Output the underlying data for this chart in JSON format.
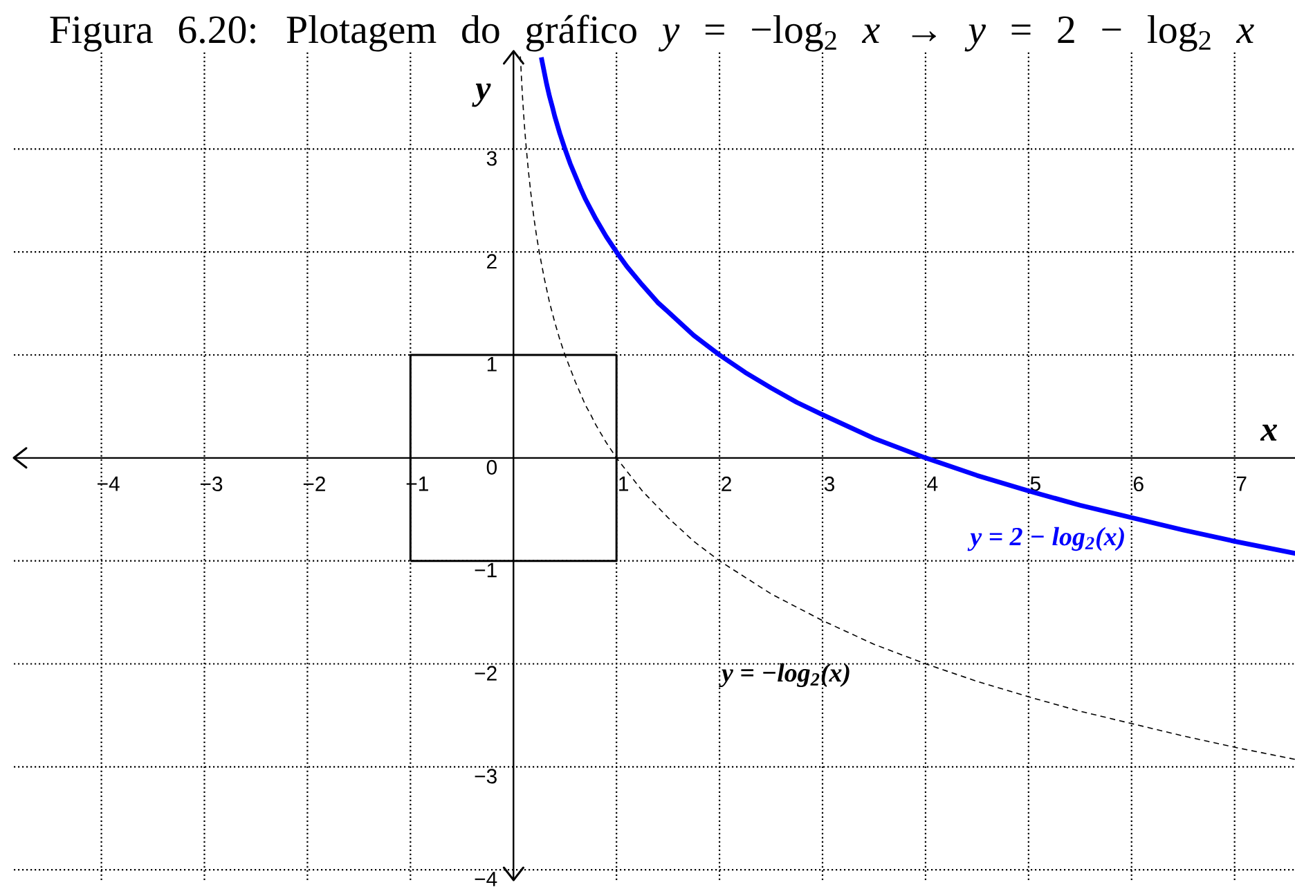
{
  "chart_data": {
    "type": "line",
    "title": "Figura 6.20: Plotagem do gráfico *y* = −log$_{2}$ *x* → *y* = 2 − log$_{2}$ *x*",
    "xlabel": "x",
    "ylabel": "y",
    "xlim": [
      -4.85,
      7.6
    ],
    "ylim": [
      -4.1,
      3.95
    ],
    "xticks": [
      {
        "value": -4,
        "label": "−4"
      },
      {
        "value": -3,
        "label": "−3"
      },
      {
        "value": -2,
        "label": "−2"
      },
      {
        "value": -1,
        "label": "−1"
      },
      1,
      2,
      3,
      4,
      5,
      6,
      7
    ],
    "yticks": [
      {
        "value": -4,
        "label": "−4"
      },
      {
        "value": -3,
        "label": "−3"
      },
      {
        "value": -2,
        "label": "−2"
      },
      {
        "value": -1,
        "label": "−1"
      },
      0,
      1,
      2,
      3
    ],
    "grid": true,
    "series": [
      {
        "name": "y = 2 − log$_{2}$(x)",
        "color": "#0000ff",
        "x": [
          0.27,
          0.28,
          0.3,
          0.32,
          0.35,
          0.38,
          0.4,
          0.45,
          0.5,
          0.55,
          0.6,
          0.65,
          0.7,
          0.8,
          0.9,
          1,
          1.1,
          1.25,
          1.4,
          1.5,
          1.75,
          2,
          2.25,
          2.5,
          2.75,
          3,
          3.5,
          4,
          4.5,
          5,
          5.5,
          6,
          6.5,
          7,
          7.6
        ],
        "values": [
          3.89,
          3.84,
          3.74,
          3.64,
          3.51,
          3.4,
          3.32,
          3.15,
          3,
          2.86,
          2.74,
          2.62,
          2.51,
          2.32,
          2.15,
          2,
          1.86,
          1.68,
          1.51,
          1.42,
          1.19,
          1,
          0.83,
          0.68,
          0.54,
          0.42,
          0.19,
          0,
          -0.17,
          -0.32,
          -0.46,
          -0.58,
          -0.7,
          -0.81,
          -0.93
        ]
      },
      {
        "name": "y = −log$_{2}$(x)",
        "color": "#000000",
        "line_style": "dashed",
        "x": [
          0.067,
          0.075,
          0.08,
          0.09,
          0.1,
          0.11,
          0.125,
          0.14,
          0.15,
          0.17,
          0.2,
          0.225,
          0.25,
          0.3,
          0.35,
          0.4,
          0.45,
          0.5,
          0.6,
          0.7,
          0.75,
          0.8,
          0.9,
          1,
          1.25,
          1.5,
          1.75,
          2,
          2.5,
          3,
          3.5,
          4,
          4.5,
          5,
          5.5,
          6,
          6.5,
          7,
          7.6
        ],
        "values": [
          3.9,
          3.74,
          3.64,
          3.47,
          3.32,
          3.18,
          3,
          2.84,
          2.74,
          2.56,
          2.32,
          2.15,
          2,
          1.74,
          1.51,
          1.32,
          1.15,
          1,
          0.74,
          0.51,
          0.42,
          0.32,
          0.15,
          0,
          -0.32,
          -0.58,
          -0.81,
          -1,
          -1.32,
          -1.58,
          -1.81,
          -2,
          -2.17,
          -2.32,
          -2.46,
          -2.58,
          -2.7,
          -2.81,
          -2.93
        ]
      },
      {
        "color": "#000000",
        "x": [
          -1,
          1,
          1
        ],
        "values": [
          -1,
          -1,
          1
        ]
      },
      {
        "color": "#000000",
        "x": [
          1,
          -1,
          -1
        ],
        "values": [
          1,
          1,
          -1
        ]
      }
    ]
  }
}
